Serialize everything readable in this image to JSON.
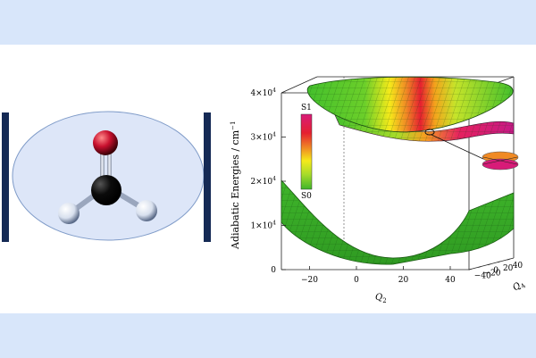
{
  "colors": {
    "band": "#d8e6fa",
    "ellipse_fill": "#dde6f8",
    "bracket": "#152a55",
    "oxygen": "#c8102e",
    "carbon": "#0b0b0b",
    "hydrogen": "#dfe6f1",
    "surface_green": "#45c12c",
    "surface_yellow": "#f5ea1a",
    "surface_red": "#e52030",
    "surface_magenta": "#d81b78"
  },
  "icons": {
    "molecule": "formaldehyde-ball-and-stick-icon",
    "conical_intersection": "conical-intersection-icon"
  },
  "chart_data": {
    "type": "surface",
    "ylabel": "Adiabatic Energies / cm",
    "ylabel_superscript": "−1",
    "z_ticks": [
      {
        "value": 0,
        "label": "0"
      },
      {
        "value": 10000,
        "label": "1×10",
        "exp": "4"
      },
      {
        "value": 20000,
        "label": "2×10",
        "exp": "4"
      },
      {
        "value": 30000,
        "label": "3×10",
        "exp": "4"
      },
      {
        "value": 40000,
        "label": "4×10",
        "exp": "4"
      }
    ],
    "zlim": [
      0,
      40000
    ],
    "x_axis": {
      "label": "Q",
      "sub": "2",
      "ticks": [
        "−20",
        "0",
        "20",
        "40"
      ]
    },
    "y_axis": {
      "label": "Q",
      "sub": "4",
      "ticks": [
        "−40",
        "−20",
        "0",
        "20",
        "40"
      ]
    },
    "colorbar": {
      "top_label": "S1",
      "bottom_label": "S0"
    },
    "surfaces": [
      "S0",
      "S1"
    ]
  }
}
